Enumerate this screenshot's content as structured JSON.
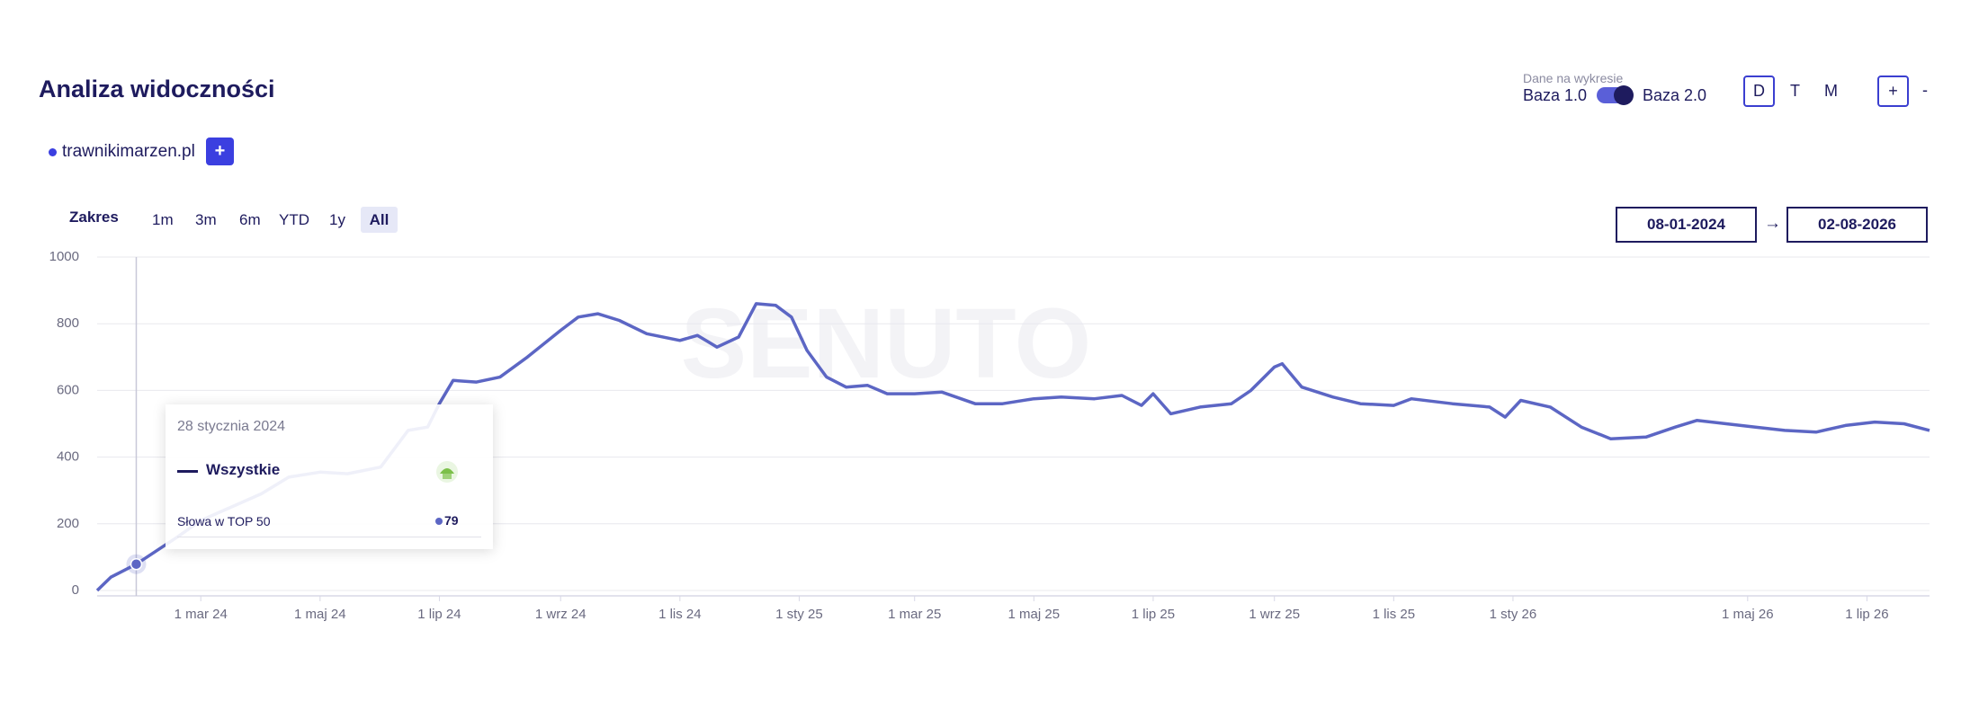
{
  "header": {
    "title": "Analiza widoczności",
    "data_label": "Dane na wykresie",
    "base_left": "Baza 1.0",
    "base_right": "Baza 2.0",
    "granularity": [
      "D",
      "T",
      "M"
    ],
    "zoom": [
      "+",
      "-"
    ]
  },
  "legend": {
    "domain": "trawnikimarzen.pl",
    "add": "+"
  },
  "range": {
    "label": "Zakres",
    "options": [
      "1m",
      "3m",
      "6m",
      "YTD",
      "1y",
      "All"
    ],
    "start": "08-01-2024",
    "arrow": "→",
    "end": "02-08-2026"
  },
  "tooltip": {
    "date": "28 stycznia 2024",
    "series": "Wszystkie",
    "metric": "Słowa w TOP 50"
  },
  "chart_data": {
    "type": "line",
    "watermark": "SENUTO",
    "color": "#5c66c4",
    "xlim": [
      "2024-01-08",
      "2026-08-02"
    ],
    "ylim": [
      0,
      1000
    ],
    "yticks": [
      0,
      200,
      400,
      600,
      800,
      1000
    ],
    "grid": true,
    "xticks": [
      {
        "value": "2024-03-01",
        "label": "1 mar 24"
      },
      {
        "value": "2024-05-01",
        "label": "1 maj 24"
      },
      {
        "value": "2024-07-01",
        "label": "1 lip 24"
      },
      {
        "value": "2024-09-01",
        "label": "1 wrz 24"
      },
      {
        "value": "2024-11-01",
        "label": "1 lis 24"
      },
      {
        "value": "2025-01-01",
        "label": "1 sty 25"
      },
      {
        "value": "2025-03-01",
        "label": "1 mar 25"
      },
      {
        "value": "2025-05-01",
        "label": "1 maj 25"
      },
      {
        "value": "2025-07-01",
        "label": "1 lip 25"
      },
      {
        "value": "2025-09-01",
        "label": "1 wrz 25"
      },
      {
        "value": "2025-11-01",
        "label": "1 lis 25"
      },
      {
        "value": "2026-01-01",
        "label": "1 sty 26"
      },
      {
        "value": "2026-05-01",
        "label": "1 maj 26"
      },
      {
        "value": "2026-07-01",
        "label": "1 lip 26"
      }
    ],
    "x": [
      "2024-01-08",
      "2024-01-15",
      "2024-01-28",
      "2024-02-18",
      "2024-03-01",
      "2024-04-01",
      "2024-04-15",
      "2024-05-01",
      "2024-05-15",
      "2024-06-01",
      "2024-06-15",
      "2024-06-25",
      "2024-07-01",
      "2024-07-08",
      "2024-07-20",
      "2024-08-01",
      "2024-08-15",
      "2024-09-01",
      "2024-09-10",
      "2024-09-20",
      "2024-10-01",
      "2024-10-15",
      "2024-11-01",
      "2024-11-10",
      "2024-11-20",
      "2024-12-01",
      "2024-12-10",
      "2024-12-20",
      "2024-12-28",
      "2025-01-05",
      "2025-01-15",
      "2025-01-25",
      "2025-02-05",
      "2025-02-15",
      "2025-03-01",
      "2025-03-15",
      "2025-04-01",
      "2025-04-15",
      "2025-05-01",
      "2025-05-15",
      "2025-06-01",
      "2025-06-15",
      "2025-06-25",
      "2025-07-01",
      "2025-07-10",
      "2025-07-25",
      "2025-08-10",
      "2025-08-20",
      "2025-09-01",
      "2025-09-05",
      "2025-09-15",
      "2025-10-01",
      "2025-10-15",
      "2025-11-01",
      "2025-11-10",
      "2025-12-01",
      "2025-12-20",
      "2025-12-28",
      "2026-01-05",
      "2026-01-20",
      "2026-02-05",
      "2026-02-20",
      "2026-03-10",
      "2026-03-25",
      "2026-04-05",
      "2026-04-20",
      "2026-05-05",
      "2026-05-20",
      "2026-06-05",
      "2026-06-20",
      "2026-07-05",
      "2026-07-20",
      "2026-08-02"
    ],
    "values": [
      0,
      40,
      79,
      160,
      210,
      290,
      340,
      355,
      350,
      370,
      480,
      490,
      560,
      630,
      625,
      640,
      700,
      780,
      820,
      830,
      810,
      770,
      750,
      765,
      730,
      760,
      860,
      855,
      820,
      720,
      640,
      610,
      615,
      590,
      590,
      595,
      560,
      560,
      575,
      580,
      575,
      585,
      555,
      590,
      530,
      550,
      560,
      600,
      670,
      680,
      610,
      580,
      560,
      555,
      575,
      560,
      550,
      520,
      570,
      550,
      490,
      455,
      460,
      490,
      510,
      500,
      490,
      480,
      475,
      495,
      505,
      500,
      480
    ]
  }
}
